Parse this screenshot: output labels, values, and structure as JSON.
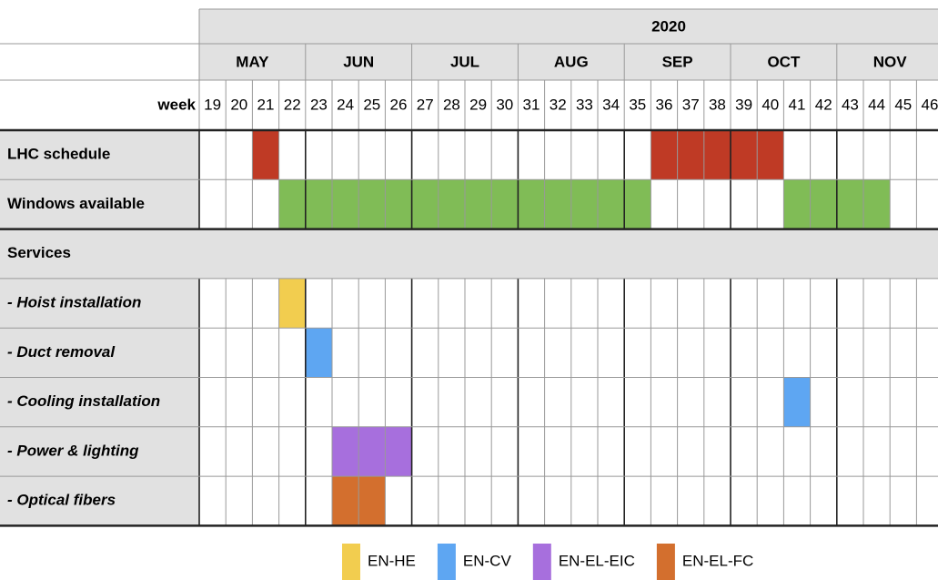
{
  "year": "2020",
  "week_label": "week",
  "months": [
    {
      "label": "MAY",
      "first": 19,
      "last": 22
    },
    {
      "label": "JUN",
      "first": 23,
      "last": 26
    },
    {
      "label": "JUL",
      "first": 27,
      "last": 30
    },
    {
      "label": "AUG",
      "first": 31,
      "last": 34
    },
    {
      "label": "SEP",
      "first": 35,
      "last": 38
    },
    {
      "label": "OCT",
      "first": 39,
      "last": 42
    },
    {
      "label": "NOV",
      "first": 43,
      "last": 46
    }
  ],
  "weeks": [
    19,
    20,
    21,
    22,
    23,
    24,
    25,
    26,
    27,
    28,
    29,
    30,
    31,
    32,
    33,
    34,
    35,
    36,
    37,
    38,
    39,
    40,
    41,
    42,
    43,
    44,
    45,
    46
  ],
  "rows": [
    {
      "label": "LHC schedule",
      "bars": [
        {
          "start": 21,
          "end": 21,
          "color": "#bf3a25"
        },
        {
          "start": 36,
          "end": 40,
          "color": "#bf3a25"
        }
      ]
    },
    {
      "label": "Windows available",
      "bars": [
        {
          "start": 22,
          "end": 35,
          "color": "#80bc56"
        },
        {
          "start": 41,
          "end": 44,
          "color": "#80bc56"
        }
      ]
    },
    {
      "label": "Services",
      "kind": "section",
      "bars": []
    },
    {
      "label": " - Hoist installation",
      "kind": "task",
      "bars": [
        {
          "start": 22,
          "end": 22,
          "color": "#f2cd4f"
        }
      ]
    },
    {
      "label": " - Duct removal",
      "kind": "task",
      "bars": [
        {
          "start": 23,
          "end": 23,
          "color": "#5ea6f2"
        }
      ]
    },
    {
      "label": " - Cooling installation",
      "kind": "task",
      "bars": [
        {
          "start": 41,
          "end": 41,
          "color": "#5ea6f2"
        }
      ]
    },
    {
      "label": " - Power & lighting",
      "kind": "task",
      "bars": [
        {
          "start": 24,
          "end": 26,
          "color": "#a76fdd"
        }
      ]
    },
    {
      "label": " - Optical fibers",
      "kind": "task",
      "bars": [
        {
          "start": 24,
          "end": 25,
          "color": "#d36f2e"
        }
      ]
    }
  ],
  "legend": [
    {
      "name": "EN-HE",
      "color": "#f2cd4f"
    },
    {
      "name": "EN-CV",
      "color": "#5ea6f2"
    },
    {
      "name": "EN-EL-EIC",
      "color": "#a76fdd"
    },
    {
      "name": "EN-EL-FC",
      "color": "#d36f2e"
    }
  ]
}
